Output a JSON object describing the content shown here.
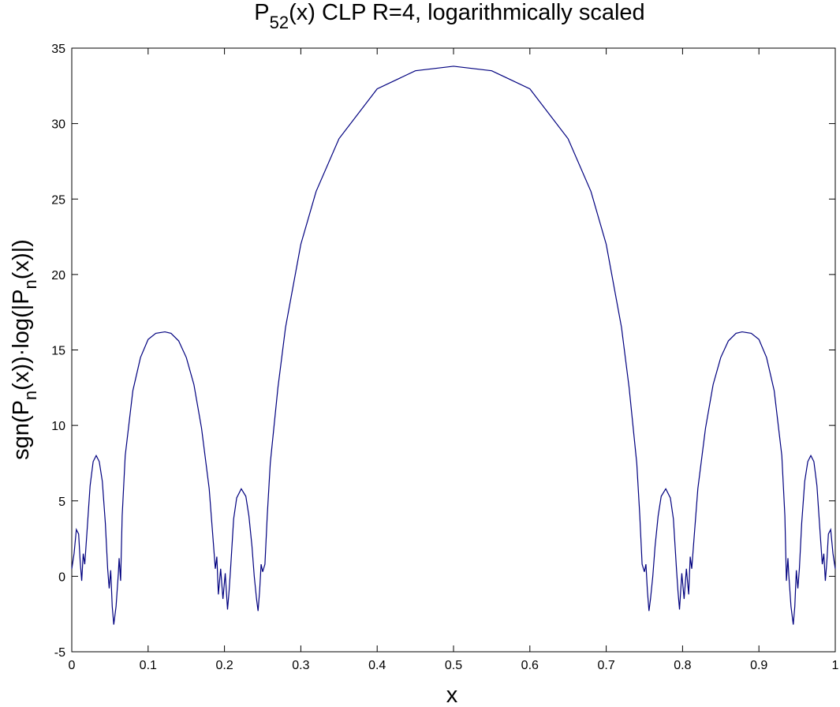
{
  "chart_data": {
    "type": "line",
    "title": [
      "P",
      "52",
      "(x) CLP R=4, logarithmically scaled"
    ],
    "xlabel": "x",
    "ylabel": [
      "sgn(P",
      "n",
      "(x))·log(|P",
      "n",
      "(x)|)"
    ],
    "color": "#00007f",
    "x": [
      0,
      0.003,
      0.006,
      0.009,
      0.011,
      0.013,
      0.015,
      0.017,
      0.02,
      0.024,
      0.028,
      0.032,
      0.036,
      0.04,
      0.044,
      0.047,
      0.049,
      0.051,
      0.053,
      0.055,
      0.058,
      0.061,
      0.062,
      0.064,
      0.066,
      0.07,
      0.08,
      0.09,
      0.1,
      0.11,
      0.122,
      0.13,
      0.14,
      0.15,
      0.16,
      0.17,
      0.18,
      0.185,
      0.188,
      0.19,
      0.192,
      0.195,
      0.198,
      0.201,
      0.204,
      0.206,
      0.208,
      0.212,
      0.216,
      0.222,
      0.228,
      0.232,
      0.236,
      0.239,
      0.242,
      0.244,
      0.246,
      0.248,
      0.25,
      0.253,
      0.256,
      0.26,
      0.27,
      0.28,
      0.3,
      0.32,
      0.35,
      0.4,
      0.45,
      0.5,
      0.55,
      0.6,
      0.65,
      0.68,
      0.7,
      0.72,
      0.73,
      0.74,
      0.744,
      0.747,
      0.75,
      0.752,
      0.754,
      0.756,
      0.758,
      0.761,
      0.764,
      0.768,
      0.772,
      0.778,
      0.784,
      0.788,
      0.792,
      0.794,
      0.796,
      0.799,
      0.802,
      0.805,
      0.808,
      0.81,
      0.812,
      0.815,
      0.82,
      0.83,
      0.84,
      0.85,
      0.86,
      0.87,
      0.878,
      0.89,
      0.9,
      0.91,
      0.92,
      0.93,
      0.934,
      0.936,
      0.938,
      0.939,
      0.942,
      0.945,
      0.947,
      0.949,
      0.951,
      0.953,
      0.956,
      0.96,
      0.964,
      0.968,
      0.972,
      0.976,
      0.98,
      0.983,
      0.985,
      0.987,
      0.989,
      0.991,
      0.994,
      0.997,
      1
    ],
    "values": [
      0.5,
      1.5,
      3.1,
      2.8,
      1,
      -0.3,
      1.5,
      0.8,
      3,
      6,
      7.6,
      8,
      7.6,
      6.3,
      3.5,
      0.5,
      -0.8,
      0.4,
      -2,
      -3.2,
      -2,
      0.2,
      1.2,
      -0.3,
      4,
      8,
      12.3,
      14.5,
      15.7,
      16.1,
      16.2,
      16.1,
      15.6,
      14.5,
      12.7,
      9.8,
      5.8,
      2.5,
      0.5,
      1.3,
      -1.2,
      0.5,
      -1.5,
      0.2,
      -2.2,
      -1,
      0.5,
      3.8,
      5.2,
      5.8,
      5.3,
      4,
      2,
      0,
      -1.5,
      -2.3,
      -1,
      0.8,
      0.3,
      0.8,
      4,
      7.5,
      12.5,
      16.5,
      22,
      25.5,
      29,
      32.3,
      33.5,
      33.8,
      33.5,
      32.3,
      29,
      25.5,
      22,
      16.5,
      12.5,
      7.5,
      4,
      0.8,
      0.3,
      0.8,
      -1,
      -2.3,
      -1.5,
      0,
      2,
      4,
      5.3,
      5.8,
      5.2,
      3.8,
      0.5,
      -1,
      -2.2,
      0.2,
      -1.5,
      0.5,
      -1.2,
      1.3,
      0.5,
      2.5,
      5.8,
      9.8,
      12.7,
      14.5,
      15.6,
      16.1,
      16.2,
      16.1,
      15.7,
      14.5,
      12.3,
      8,
      4,
      -0.3,
      1.2,
      0.2,
      -2,
      -3.2,
      -2,
      0.4,
      -0.8,
      0.5,
      3.5,
      6.3,
      7.6,
      8,
      7.6,
      6,
      3,
      0.8,
      1.5,
      -0.3,
      1,
      2.8,
      3.1,
      1.5,
      0.5
    ],
    "xlim": [
      0,
      1
    ],
    "xticks": [
      0,
      0.1,
      0.2,
      0.3,
      0.4,
      0.5,
      0.6,
      0.7,
      0.8,
      0.9,
      1
    ],
    "ylim": [
      -5,
      35
    ],
    "yticks": [
      -5,
      0,
      5,
      10,
      15,
      20,
      25,
      30,
      35
    ]
  }
}
